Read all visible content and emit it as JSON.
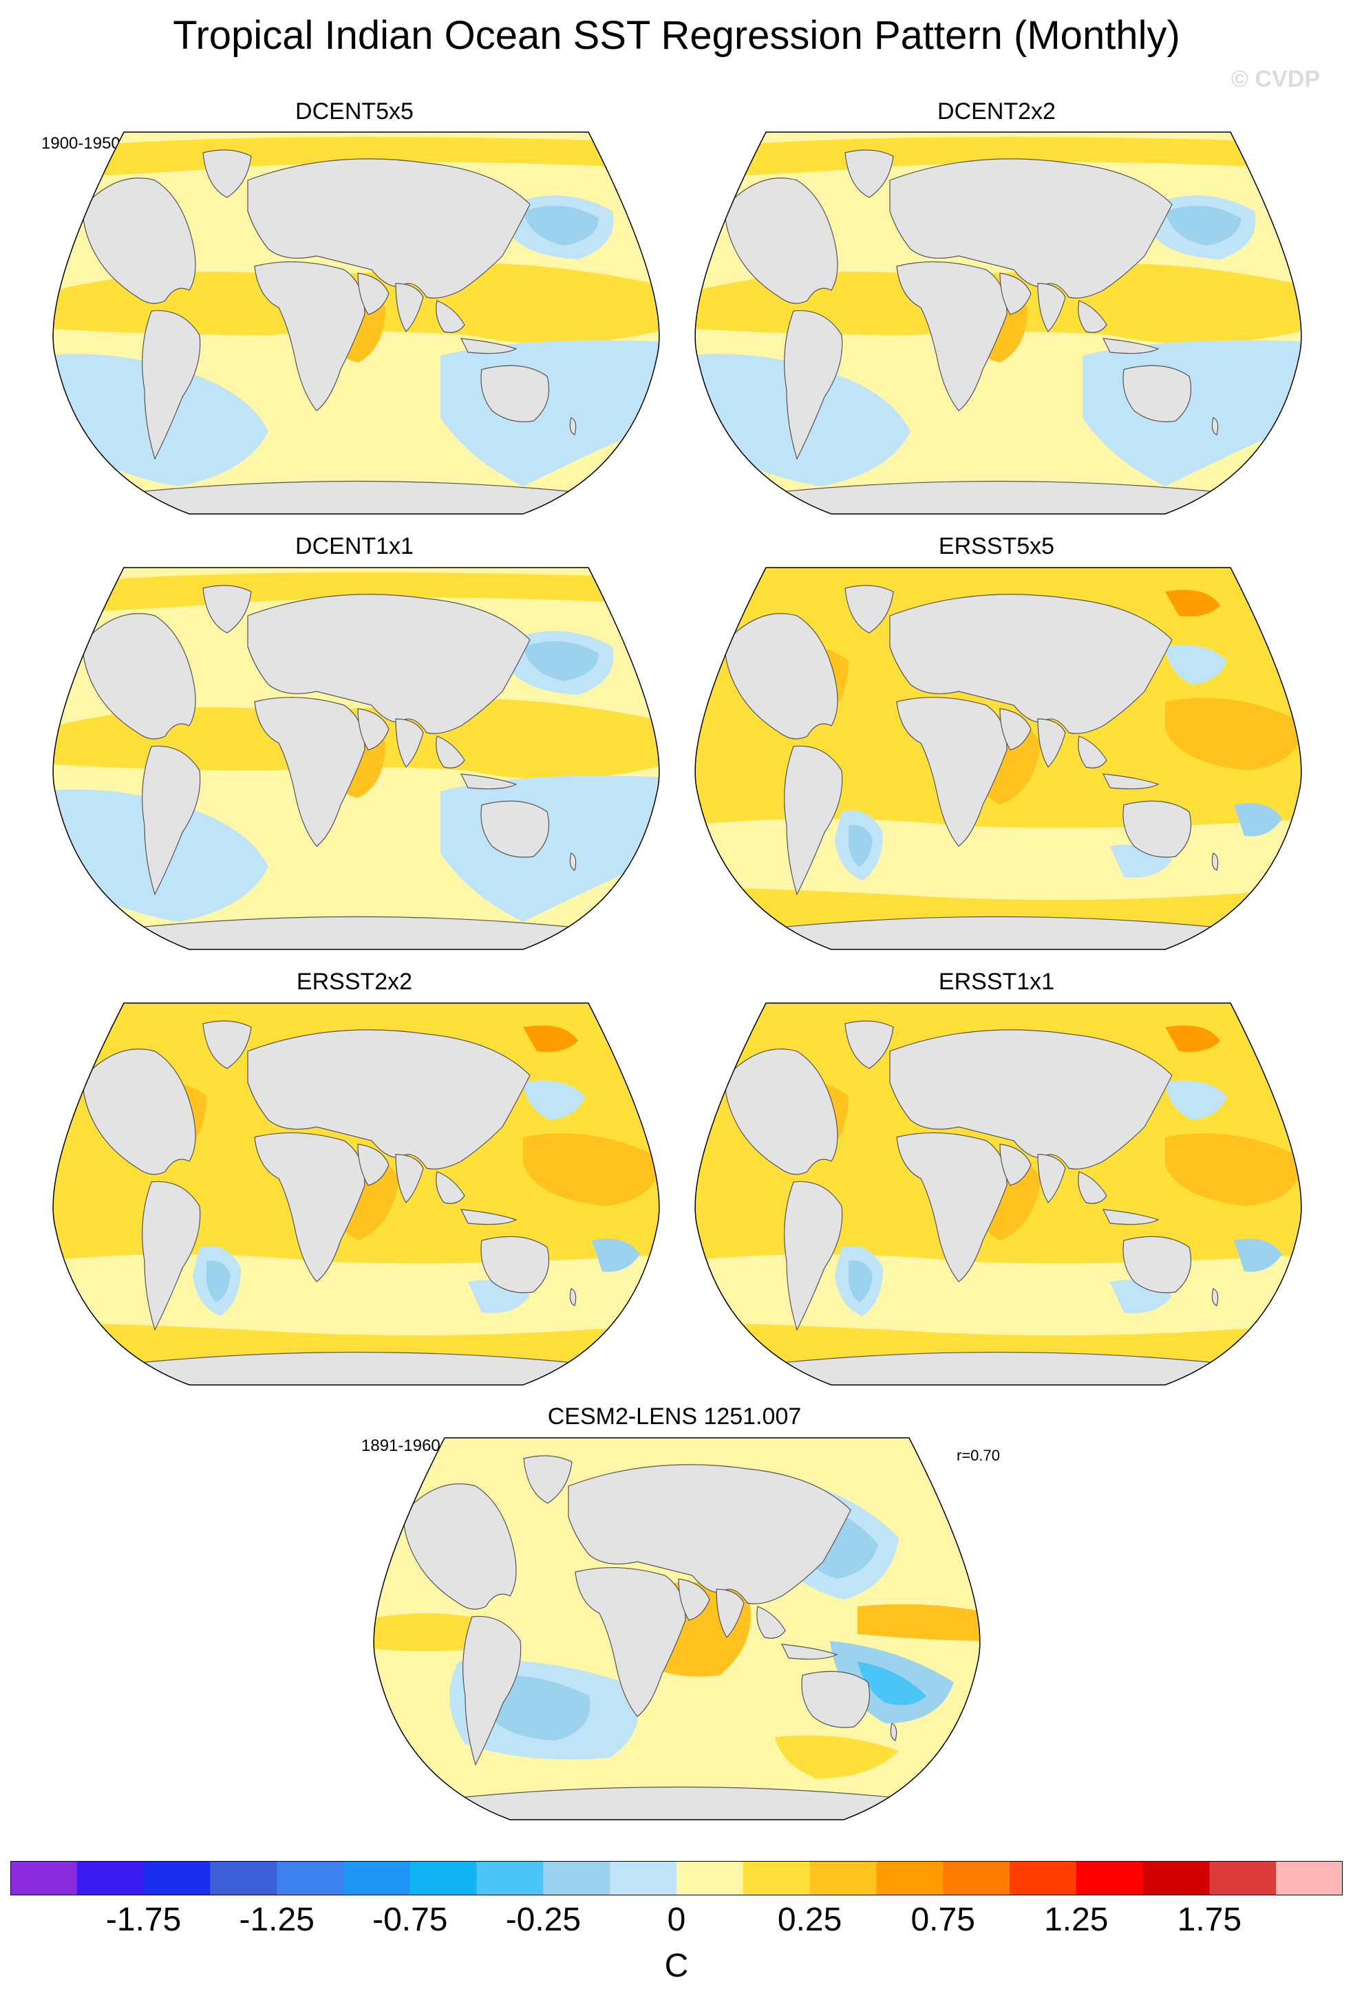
{
  "title": "Tropical Indian Ocean SST Regression Pattern (Monthly)",
  "watermark": "© CVDP",
  "period_obs": "1900-1950",
  "period_model": "1891-1960",
  "correlation": "r=0.70",
  "chart_data": [
    {
      "type": "heatmap",
      "title": "DCENT5x5",
      "projection": "robinson",
      "pattern": "obs_coarse"
    },
    {
      "type": "heatmap",
      "title": "DCENT2x2",
      "projection": "robinson",
      "pattern": "obs_coarse"
    },
    {
      "type": "heatmap",
      "title": "DCENT1x1",
      "projection": "robinson",
      "pattern": "obs_coarse"
    },
    {
      "type": "heatmap",
      "title": "ERSST5x5",
      "projection": "robinson",
      "pattern": "obs_warm"
    },
    {
      "type": "heatmap",
      "title": "ERSST2x2",
      "projection": "robinson",
      "pattern": "obs_warm"
    },
    {
      "type": "heatmap",
      "title": "ERSST1x1",
      "projection": "robinson",
      "pattern": "obs_warm"
    },
    {
      "type": "heatmap",
      "title": "CESM2-LENS 1251.007",
      "projection": "robinson",
      "pattern": "model"
    }
  ],
  "colorbar": {
    "unit": "C",
    "colors": [
      "#8b2be0",
      "#3a1af0",
      "#1b2dee",
      "#3c5fd8",
      "#3b80ec",
      "#1f96f5",
      "#11b3f5",
      "#4ac5f5",
      "#9cd2ee",
      "#bfe3f7",
      "#fff7a8",
      "#ffe03a",
      "#ffc21e",
      "#ff9d00",
      "#ff7a00",
      "#ff3d00",
      "#ff0000",
      "#d40000",
      "#dc3c3c",
      "#ffb6b6"
    ],
    "tick_values": [
      -1.75,
      -1.25,
      -0.75,
      -0.25,
      0,
      0.25,
      0.75,
      1.25,
      1.75
    ],
    "tick_labels": [
      "-1.75",
      "-1.25",
      "-0.75",
      "-0.25",
      "0",
      "0.25",
      "0.75",
      "1.25",
      "1.75"
    ],
    "boundaries": [
      -2.0,
      -1.75,
      -1.5,
      -1.25,
      -1.0,
      -0.75,
      -0.5,
      -0.25,
      -0.1,
      0,
      0.1,
      0.25,
      0.5,
      0.75,
      1.0,
      1.25,
      1.5,
      1.75,
      2.0
    ]
  }
}
